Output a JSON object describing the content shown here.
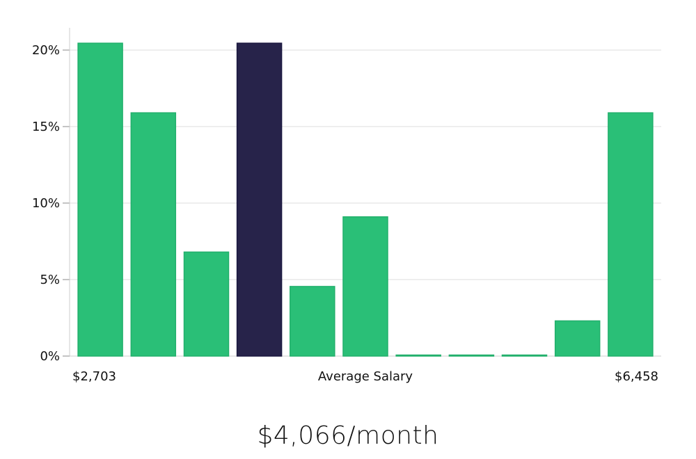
{
  "chart_data": {
    "type": "bar",
    "values": [
      20.45,
      15.9,
      6.8,
      20.45,
      4.55,
      9.1,
      0,
      0,
      0,
      2.3,
      15.9
    ],
    "highlight_index": 3,
    "ylim": [
      0,
      21.5
    ],
    "yticks": [
      0,
      5,
      10,
      15,
      20
    ],
    "ytick_labels": [
      "0%",
      "5%",
      "10%",
      "15%",
      "20%"
    ],
    "xlabel_left": "$2,703",
    "xlabel_center": "Average Salary",
    "xlabel_right": "$6,458",
    "grid": true,
    "colors": {
      "bar": "#2abf77",
      "highlight": "#27234a",
      "grid": "#dddddd",
      "axis": "#cccccc"
    }
  },
  "summary": {
    "value": "$4,066/month"
  }
}
